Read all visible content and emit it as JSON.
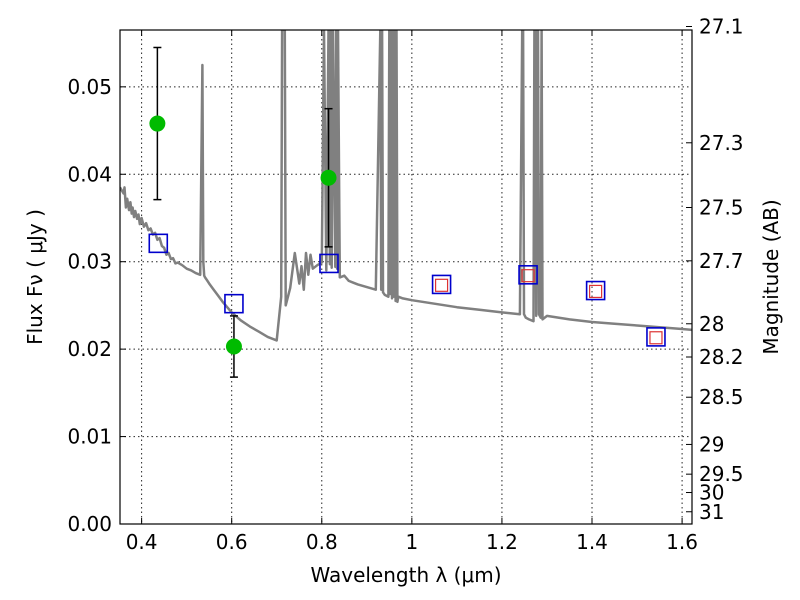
{
  "chart_data": {
    "type": "scatter",
    "xlabel": "Wavelength  λ (μm)",
    "ylabel": "Flux  Fν  ( μJy )",
    "y2label": "Magnitude (AB)",
    "xlim": [
      0.352,
      1.622
    ],
    "ylim": [
      0.0,
      0.0565
    ],
    "grid": true,
    "x_ticks": [
      {
        "v": 0.4,
        "t": "0.4"
      },
      {
        "v": 0.6,
        "t": "0.6"
      },
      {
        "v": 0.8,
        "t": "0.8"
      },
      {
        "v": 1.0,
        "t": "1"
      },
      {
        "v": 1.2,
        "t": "1.2"
      },
      {
        "v": 1.4,
        "t": "1.4"
      },
      {
        "v": 1.6,
        "t": "1.6"
      }
    ],
    "y_ticks": [
      {
        "v": 0.0,
        "t": "0.00"
      },
      {
        "v": 0.01,
        "t": "0.01"
      },
      {
        "v": 0.02,
        "t": "0.02"
      },
      {
        "v": 0.03,
        "t": "0.03"
      },
      {
        "v": 0.04,
        "t": "0.04"
      },
      {
        "v": 0.05,
        "t": "0.05"
      }
    ],
    "y2_ticks": [
      {
        "v": 0.0569,
        "t": "27.1"
      },
      {
        "v": 0.0436,
        "t": "27.3"
      },
      {
        "v": 0.0362,
        "t": "27.5"
      },
      {
        "v": 0.0301,
        "t": "27.7"
      },
      {
        "v": 0.0229,
        "t": "28"
      },
      {
        "v": 0.0191,
        "t": "28.2"
      },
      {
        "v": 0.0145,
        "t": "28.5"
      },
      {
        "v": 0.0091,
        "t": "29"
      },
      {
        "v": 0.0057,
        "t": "29.5"
      },
      {
        "v": 0.0036,
        "t": "30"
      },
      {
        "v": 0.0014,
        "t": "31"
      }
    ],
    "series": [
      {
        "kind": "line",
        "color": "#808080",
        "x": [
          0.352,
          0.36,
          0.362,
          0.365,
          0.368,
          0.372,
          0.375,
          0.378,
          0.38,
          0.383,
          0.386,
          0.39,
          0.393,
          0.396,
          0.4,
          0.405,
          0.41,
          0.415,
          0.42,
          0.425,
          0.43,
          0.435,
          0.44,
          0.445,
          0.45,
          0.455,
          0.46,
          0.465,
          0.47,
          0.475,
          0.48,
          0.49,
          0.5,
          0.51,
          0.52,
          0.53,
          0.535,
          0.537,
          0.539,
          0.541,
          0.545,
          0.55,
          0.56,
          0.57,
          0.58,
          0.59,
          0.6,
          0.62,
          0.64,
          0.66,
          0.68,
          0.7,
          0.71,
          0.712,
          0.714,
          0.716,
          0.718,
          0.72,
          0.73,
          0.74,
          0.75,
          0.755,
          0.76,
          0.765,
          0.77,
          0.775,
          0.78,
          0.79,
          0.8,
          0.805,
          0.81,
          0.815,
          0.818,
          0.82,
          0.822,
          0.825,
          0.83,
          0.832,
          0.834,
          0.836,
          0.84,
          0.85,
          0.86,
          0.87,
          0.88,
          0.9,
          0.92,
          0.93,
          0.932,
          0.934,
          0.936,
          0.94,
          0.948,
          0.95,
          0.952,
          0.954,
          0.956,
          0.958,
          0.96,
          0.962,
          0.964,
          0.966,
          0.968,
          0.97,
          0.98,
          1.0,
          1.05,
          1.1,
          1.15,
          1.2,
          1.24,
          1.245,
          1.247,
          1.249,
          1.251,
          1.253,
          1.26,
          1.27,
          1.272,
          1.274,
          1.276,
          1.278,
          1.28,
          1.282,
          1.286,
          1.288,
          1.29,
          1.3,
          1.35,
          1.4,
          1.45,
          1.5,
          1.55,
          1.6,
          1.622
        ],
        "y": [
          0.0385,
          0.0378,
          0.0385,
          0.0362,
          0.0372,
          0.0359,
          0.0368,
          0.0355,
          0.0362,
          0.0351,
          0.0358,
          0.0349,
          0.0354,
          0.0343,
          0.035,
          0.034,
          0.0344,
          0.0336,
          0.0338,
          0.0331,
          0.0333,
          0.0325,
          0.0327,
          0.0318,
          0.0316,
          0.0308,
          0.031,
          0.0303,
          0.0304,
          0.0298,
          0.0299,
          0.0296,
          0.0292,
          0.029,
          0.0287,
          0.0285,
          0.0525,
          0.03,
          0.0284,
          0.0282,
          0.0279,
          0.0275,
          0.0268,
          0.0261,
          0.0254,
          0.0248,
          0.0242,
          0.0233,
          0.0226,
          0.022,
          0.0214,
          0.021,
          0.026,
          0.0565,
          0.0565,
          0.0565,
          0.0565,
          0.025,
          0.027,
          0.031,
          0.0275,
          0.0295,
          0.0268,
          0.031,
          0.0285,
          0.0308,
          0.0292,
          0.0296,
          0.0299,
          0.0565,
          0.029,
          0.0565,
          0.0297,
          0.0565,
          0.0293,
          0.0565,
          0.0294,
          0.0565,
          0.0292,
          0.0565,
          0.0282,
          0.0284,
          0.0278,
          0.0276,
          0.0274,
          0.0271,
          0.0268,
          0.0565,
          0.0268,
          0.0565,
          0.0265,
          0.0262,
          0.026,
          0.0565,
          0.0263,
          0.0565,
          0.0258,
          0.0565,
          0.026,
          0.0565,
          0.0255,
          0.0565,
          0.0254,
          0.026,
          0.0258,
          0.0256,
          0.0252,
          0.0248,
          0.0245,
          0.0242,
          0.024,
          0.0565,
          0.0565,
          0.024,
          0.0238,
          0.0236,
          0.0234,
          0.0232,
          0.0565,
          0.0565,
          0.0238,
          0.0565,
          0.0565,
          0.024,
          0.0236,
          0.0565,
          0.0234,
          0.0238,
          0.0234,
          0.0231,
          0.0229,
          0.0227,
          0.0225,
          0.0223,
          0.0222
        ]
      },
      {
        "kind": "points_with_errorbars",
        "color": "#00bb00",
        "x": [
          0.435,
          0.605,
          0.815
        ],
        "y": [
          0.0458,
          0.0203,
          0.0396
        ],
        "yerr_low": [
          0.0087,
          0.0035,
          0.0079
        ],
        "yerr_high": [
          0.0087,
          0.0035,
          0.0079
        ]
      },
      {
        "kind": "open_squares",
        "color": "#0000cc",
        "x": [
          0.437,
          0.605,
          0.816,
          1.066,
          1.258,
          1.408,
          1.542
        ],
        "y": [
          0.0321,
          0.0252,
          0.0298,
          0.0274,
          0.0285,
          0.0267,
          0.0214
        ]
      },
      {
        "kind": "open_squares_small",
        "color": "#dd3333",
        "x": [
          1.066,
          1.258,
          1.408,
          1.542
        ],
        "y": [
          0.0273,
          0.0284,
          0.0266,
          0.0213
        ]
      }
    ]
  }
}
